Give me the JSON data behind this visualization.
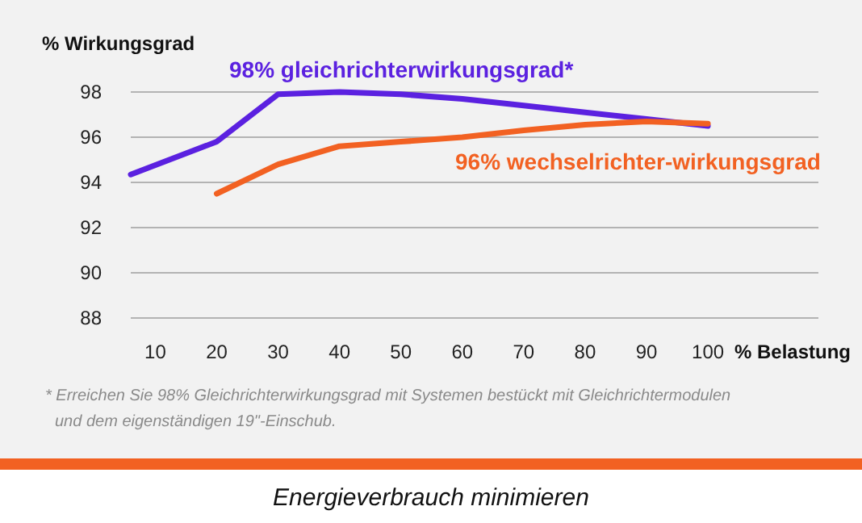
{
  "chart_data": {
    "type": "line",
    "title": "Energieverbrauch minimieren",
    "xlabel": "% Belastung",
    "ylabel": "% Wirkungsgrad",
    "xlim": [
      6,
      118
    ],
    "xticks": [
      10,
      20,
      30,
      40,
      50,
      60,
      70,
      80,
      90,
      100
    ],
    "ylim": [
      88,
      98
    ],
    "yticks": [
      88,
      90,
      92,
      94,
      96,
      98
    ],
    "grid": "y",
    "legend": false,
    "line_style": "solid",
    "marker": "none",
    "series": [
      {
        "name": "98% gleichrichterwirkungsgrad*",
        "color": "#5b21e0",
        "x": [
          6,
          20,
          30,
          40,
          50,
          60,
          70,
          80,
          90,
          100
        ],
        "values": [
          94.35,
          95.8,
          97.9,
          98.0,
          97.9,
          97.7,
          97.4,
          97.1,
          96.8,
          96.5
        ]
      },
      {
        "name": "96% wechselrichter-wirkungsgrad",
        "color": "#f26122",
        "x": [
          20,
          30,
          40,
          50,
          60,
          70,
          80,
          90,
          100
        ],
        "values": [
          93.5,
          94.8,
          95.6,
          95.8,
          96.0,
          96.3,
          96.55,
          96.7,
          96.6
        ]
      }
    ],
    "annotations": [
      "* Erreichen Sie 98% Gleichrichterwirkungsgrad mit Systemen bestückt mit Gleichrichtermodulen und dem eigenständigen 19\"-Einschub."
    ]
  }
}
